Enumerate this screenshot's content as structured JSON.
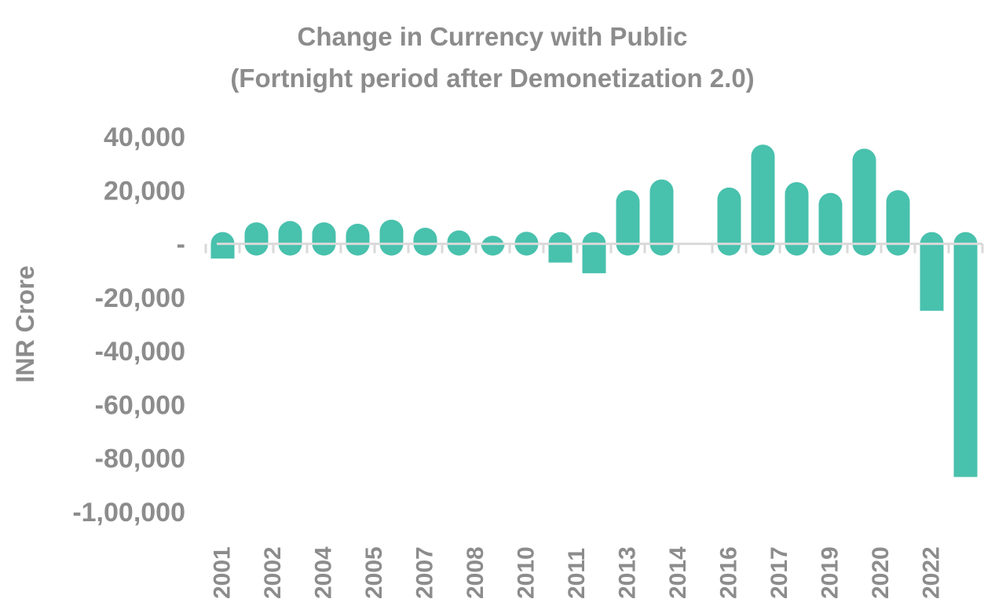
{
  "chart_data": {
    "type": "bar",
    "title": "Change in Currency with Public",
    "subtitle": "(Fortnight period after Demonetization 2.0)",
    "ylabel": "INR Crore",
    "xlabel": "",
    "ylim": [
      -100000,
      40000
    ],
    "y_ticks": [
      40000,
      20000,
      0,
      -20000,
      -40000,
      -60000,
      -80000,
      -100000
    ],
    "y_tick_labels": [
      "40,000",
      "20,000",
      "-",
      "-20,000",
      "-40,000",
      "-60,000",
      "-80,000",
      "-1,00,000"
    ],
    "x_tick_labels": [
      "2001",
      "2002",
      "2004",
      "2005",
      "2007",
      "2008",
      "2010",
      "2011",
      "2013",
      "2014",
      "2016",
      "2017",
      "2019",
      "2020",
      "2022"
    ],
    "grid": false,
    "legend": "none",
    "bar_color": "#48c1ad",
    "axis_line_color": "#d9d9d9",
    "values": [
      -5500,
      8000,
      8500,
      8000,
      7500,
      9000,
      6000,
      5000,
      3000,
      4500,
      -7000,
      -11000,
      20000,
      24000,
      null,
      21000,
      37000,
      23000,
      19000,
      35500,
      20000,
      -25000,
      -87000
    ]
  }
}
